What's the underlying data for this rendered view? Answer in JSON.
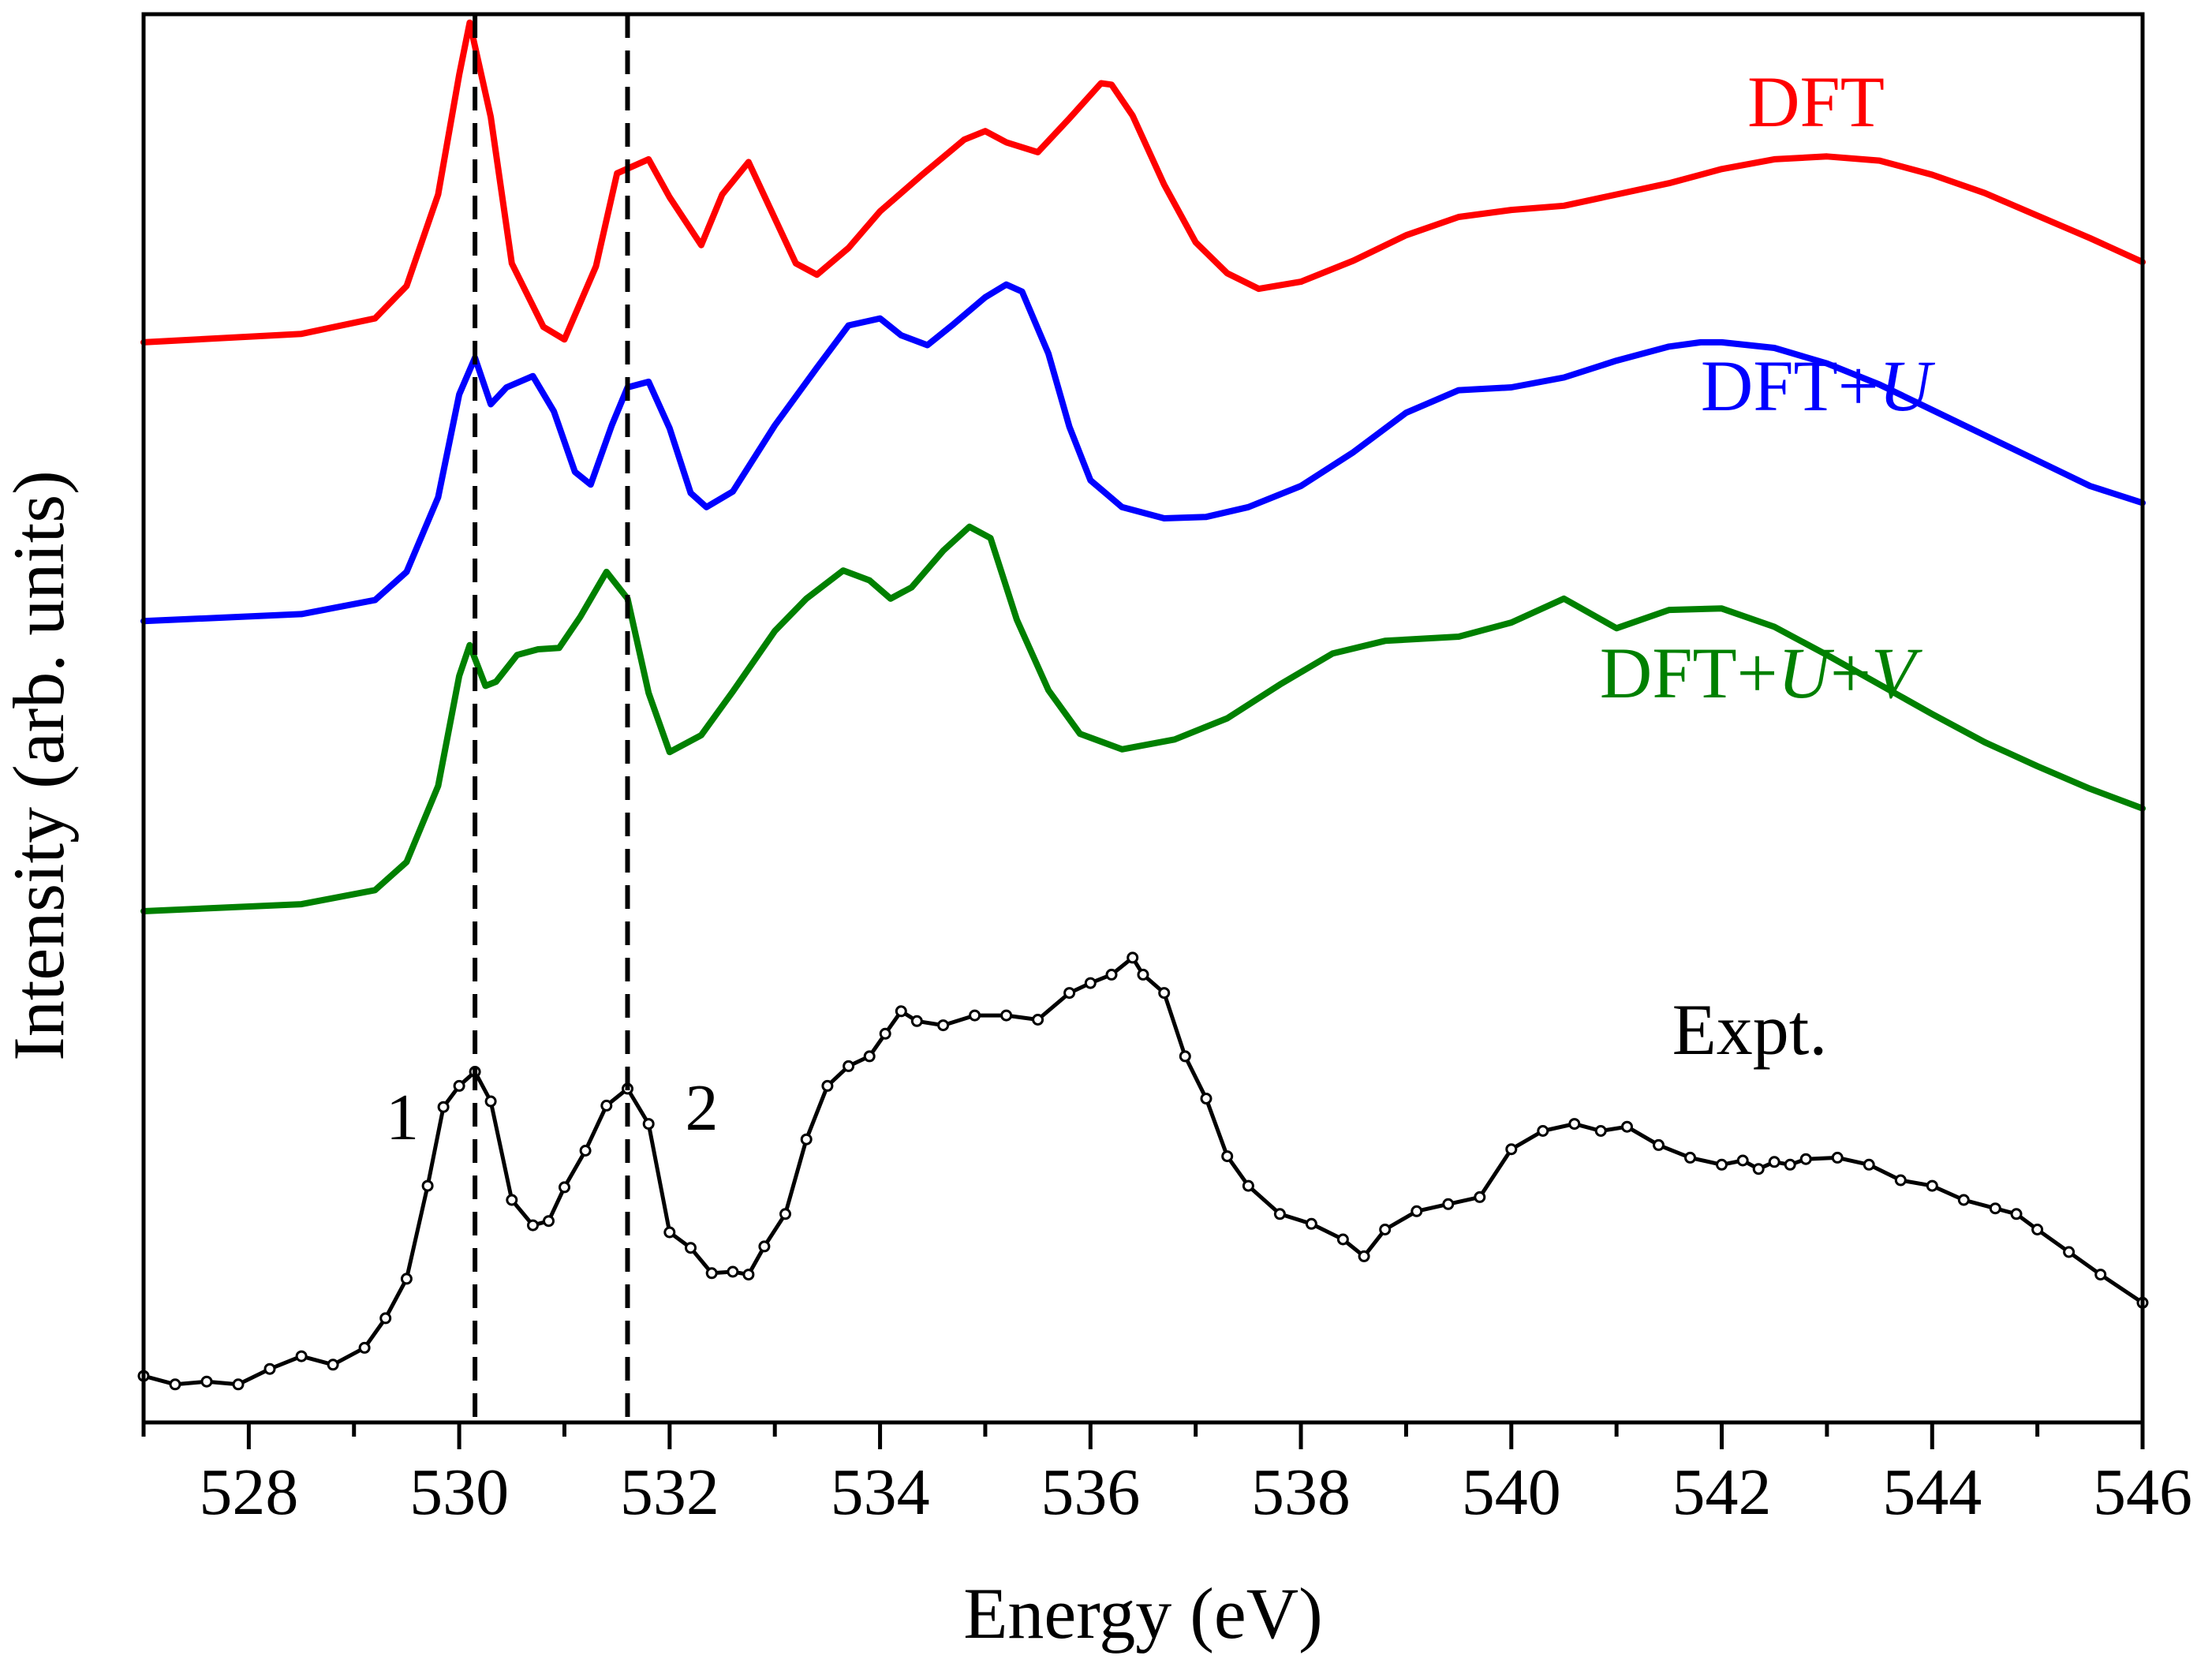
{
  "chart_data": {
    "type": "line",
    "xlabel": "Energy (eV)",
    "ylabel": "Intensity (arb. units)",
    "xlim": [
      527,
      546
    ],
    "ylim": [
      0,
      1
    ],
    "x_ticks": [
      528,
      530,
      532,
      534,
      536,
      538,
      540,
      542,
      544,
      546
    ],
    "x_tick_labels": [
      "528",
      "530",
      "532",
      "534",
      "536",
      "538",
      "540",
      "542",
      "544",
      "546"
    ],
    "minor_tick_step": 1,
    "y_ticks_visible": false,
    "grid": false,
    "legend": "inline labels at the right of each curve",
    "vertical_lines": [
      {
        "x": 530.15,
        "style": "dashed",
        "label": "1"
      },
      {
        "x": 531.6,
        "style": "dashed",
        "label": "2"
      }
    ],
    "series": [
      {
        "name": "DFT",
        "color": "#ff0000",
        "x": [
          527.0,
          528.5,
          529.2,
          529.5,
          529.8,
          530.0,
          530.1,
          530.3,
          530.5,
          530.8,
          531.0,
          531.3,
          531.5,
          531.8,
          532.0,
          532.3,
          532.5,
          532.75,
          533.0,
          533.2,
          533.4,
          533.7,
          534.0,
          534.4,
          534.8,
          535.0,
          535.2,
          535.5,
          535.8,
          536.1,
          536.2,
          536.4,
          536.7,
          537.0,
          537.3,
          537.6,
          538.0,
          538.5,
          539.0,
          539.5,
          540.0,
          540.5,
          541.0,
          541.5,
          542.0,
          542.5,
          543.0,
          543.5,
          544.0,
          544.5,
          545.0,
          545.5,
          546.0
        ],
        "y": [
          0.767,
          0.773,
          0.784,
          0.807,
          0.872,
          0.957,
          0.994,
          0.927,
          0.823,
          0.778,
          0.769,
          0.821,
          0.887,
          0.897,
          0.87,
          0.836,
          0.872,
          0.895,
          0.855,
          0.823,
          0.815,
          0.834,
          0.86,
          0.886,
          0.911,
          0.917,
          0.909,
          0.902,
          0.926,
          0.951,
          0.95,
          0.928,
          0.879,
          0.838,
          0.816,
          0.805,
          0.81,
          0.825,
          0.843,
          0.856,
          0.861,
          0.864,
          0.872,
          0.88,
          0.89,
          0.897,
          0.899,
          0.896,
          0.886,
          0.873,
          0.857,
          0.841,
          0.824
        ]
      },
      {
        "name": "DFT+U",
        "color": "#0000ff",
        "x": [
          527.0,
          528.5,
          529.2,
          529.5,
          529.8,
          530.0,
          530.15,
          530.3,
          530.45,
          530.7,
          530.9,
          531.1,
          531.25,
          531.45,
          531.6,
          531.8,
          532.0,
          532.2,
          532.35,
          532.6,
          533.0,
          533.4,
          533.7,
          534.0,
          534.2,
          534.45,
          534.7,
          535.0,
          535.2,
          535.35,
          535.6,
          535.8,
          536.0,
          536.3,
          536.7,
          537.1,
          537.5,
          538.0,
          538.5,
          539.0,
          539.5,
          540.0,
          540.5,
          541.0,
          541.5,
          541.8,
          542.0,
          542.5,
          543.0,
          543.5,
          544.0,
          544.5,
          545.0,
          545.5,
          546.0
        ],
        "y": [
          0.569,
          0.574,
          0.584,
          0.604,
          0.657,
          0.73,
          0.756,
          0.723,
          0.735,
          0.743,
          0.718,
          0.675,
          0.666,
          0.708,
          0.735,
          0.739,
          0.706,
          0.66,
          0.65,
          0.661,
          0.708,
          0.749,
          0.779,
          0.784,
          0.772,
          0.765,
          0.78,
          0.799,
          0.808,
          0.803,
          0.759,
          0.707,
          0.669,
          0.65,
          0.642,
          0.643,
          0.65,
          0.665,
          0.689,
          0.717,
          0.733,
          0.735,
          0.742,
          0.754,
          0.764,
          0.767,
          0.767,
          0.763,
          0.752,
          0.737,
          0.719,
          0.701,
          0.683,
          0.665,
          0.653
        ]
      },
      {
        "name": "DFT+U+V",
        "color": "#008000",
        "x": [
          527.0,
          528.5,
          529.2,
          529.5,
          529.8,
          530.0,
          530.1,
          530.25,
          530.35,
          530.55,
          530.75,
          530.95,
          531.15,
          531.4,
          531.6,
          531.8,
          532.0,
          532.3,
          532.6,
          533.0,
          533.3,
          533.65,
          533.9,
          534.1,
          534.3,
          534.6,
          534.85,
          535.05,
          535.3,
          535.6,
          535.9,
          536.3,
          536.8,
          537.3,
          537.8,
          538.3,
          538.8,
          539.5,
          540.0,
          540.5,
          541.0,
          541.5,
          542.0,
          542.5,
          543.0,
          543.5,
          544.0,
          544.5,
          545.0,
          545.5,
          546.0
        ],
        "y": [
          0.363,
          0.368,
          0.378,
          0.398,
          0.452,
          0.53,
          0.552,
          0.523,
          0.526,
          0.545,
          0.549,
          0.55,
          0.572,
          0.604,
          0.585,
          0.518,
          0.476,
          0.488,
          0.519,
          0.562,
          0.585,
          0.605,
          0.598,
          0.585,
          0.593,
          0.619,
          0.636,
          0.628,
          0.57,
          0.52,
          0.489,
          0.478,
          0.485,
          0.5,
          0.524,
          0.546,
          0.555,
          0.558,
          0.568,
          0.585,
          0.564,
          0.577,
          0.578,
          0.565,
          0.545,
          0.524,
          0.503,
          0.483,
          0.466,
          0.45,
          0.436
        ],
        "note_x_label_in_text": false
      },
      {
        "name": "Expt.",
        "color": "#000000",
        "markers": "open circles",
        "x": [
          527.0,
          527.3,
          527.6,
          527.9,
          528.2,
          528.5,
          528.8,
          529.1,
          529.3,
          529.5,
          529.7,
          529.85,
          530.0,
          530.15,
          530.3,
          530.5,
          530.7,
          530.85,
          531.0,
          531.2,
          531.4,
          531.6,
          531.8,
          532.0,
          532.2,
          532.4,
          532.6,
          532.75,
          532.9,
          533.1,
          533.3,
          533.5,
          533.7,
          533.9,
          534.05,
          534.2,
          534.35,
          534.6,
          534.9,
          535.2,
          535.5,
          535.8,
          536.0,
          536.2,
          536.4,
          536.5,
          536.7,
          536.9,
          537.1,
          537.3,
          537.5,
          537.8,
          538.1,
          538.4,
          538.6,
          538.8,
          539.1,
          539.4,
          539.7,
          540.0,
          540.3,
          540.6,
          540.85,
          541.1,
          541.4,
          541.7,
          542.0,
          542.2,
          542.35,
          542.5,
          542.65,
          542.8,
          543.1,
          543.4,
          543.7,
          544.0,
          544.3,
          544.6,
          544.8,
          545.0,
          545.3,
          545.6,
          546.0
        ],
        "y": [
          0.033,
          0.027,
          0.029,
          0.027,
          0.038,
          0.047,
          0.041,
          0.053,
          0.074,
          0.102,
          0.168,
          0.224,
          0.239,
          0.249,
          0.228,
          0.158,
          0.14,
          0.143,
          0.167,
          0.193,
          0.225,
          0.237,
          0.212,
          0.135,
          0.124,
          0.106,
          0.107,
          0.105,
          0.125,
          0.148,
          0.201,
          0.239,
          0.253,
          0.26,
          0.276,
          0.292,
          0.285,
          0.282,
          0.289,
          0.289,
          0.286,
          0.305,
          0.312,
          0.318,
          0.33,
          0.318,
          0.305,
          0.26,
          0.23,
          0.189,
          0.168,
          0.148,
          0.141,
          0.13,
          0.118,
          0.137,
          0.15,
          0.155,
          0.16,
          0.194,
          0.207,
          0.212,
          0.207,
          0.21,
          0.197,
          0.188,
          0.183,
          0.186,
          0.18,
          0.185,
          0.183,
          0.187,
          0.188,
          0.183,
          0.172,
          0.168,
          0.158,
          0.152,
          0.148,
          0.137,
          0.121,
          0.105,
          0.085
        ]
      }
    ],
    "series_labels": [
      {
        "series": "DFT",
        "text_parts": [
          {
            "text": "DFT",
            "italic": false
          }
        ]
      },
      {
        "series": "DFT+U",
        "text_parts": [
          {
            "text": "DFT+",
            "italic": false
          },
          {
            "text": "U",
            "italic": true
          }
        ]
      },
      {
        "series": "DFT+U+V",
        "text_parts": [
          {
            "text": "DFT+",
            "italic": false
          },
          {
            "text": "U",
            "italic": true
          },
          {
            "text": "+",
            "italic": false
          },
          {
            "text": "V",
            "italic": true
          }
        ]
      },
      {
        "series": "Expt.",
        "text_parts": [
          {
            "text": "Expt.",
            "italic": false
          }
        ]
      }
    ]
  }
}
